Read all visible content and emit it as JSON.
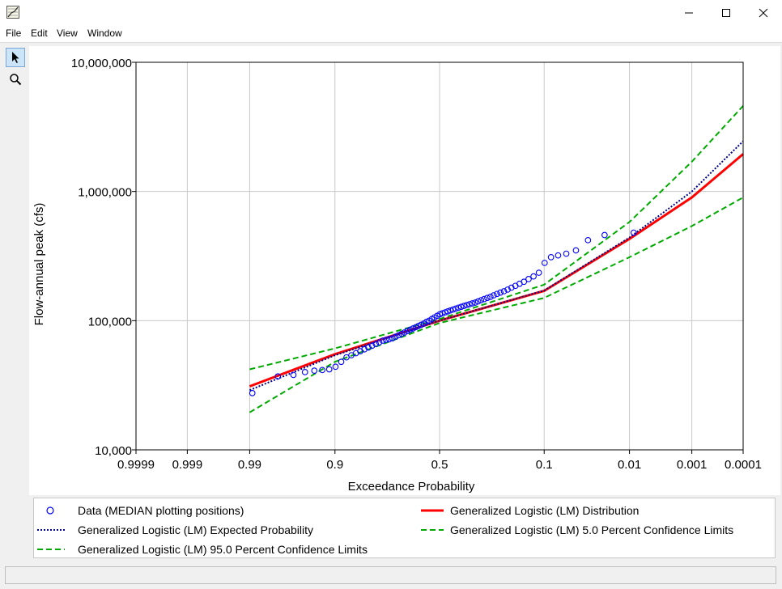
{
  "window": {
    "title": "",
    "icon": "chart-app-icon",
    "controls": [
      "minimize-icon",
      "maximize-icon",
      "close-icon"
    ]
  },
  "menu": {
    "items": [
      "File",
      "Edit",
      "View",
      "Window"
    ]
  },
  "toolbar": {
    "tools": [
      "pointer-arrow-icon",
      "magnifier-zoom-icon"
    ],
    "active": 0
  },
  "chart_data": {
    "type": "line",
    "xlabel": "Exceedance Probability",
    "ylabel": "Flow-annual peak (cfs)",
    "x_scale": "normal-probability, reversed",
    "y_scale": "log10",
    "xlim": [
      0.9999,
      0.0001
    ],
    "ylim": [
      10000,
      10000000
    ],
    "x_ticks": [
      0.9999,
      0.999,
      0.99,
      0.9,
      0.5,
      0.1,
      0.01,
      0.001,
      0.0001
    ],
    "x_tick_labels": [
      "0.9999",
      "0.999",
      "0.99",
      "0.9",
      "0.5",
      "0.1",
      "0.01",
      "0.001",
      "0.0001"
    ],
    "y_ticks": [
      10000,
      100000,
      1000000,
      10000000
    ],
    "y_tick_labels": [
      "10,000",
      "100,000",
      "1,000,000",
      "10,000,000"
    ],
    "grid": true,
    "legend_position": "bottom",
    "series": [
      {
        "name": "Data (MEDIAN plotting positions)",
        "kind": "scatter",
        "marker": "open-circle",
        "color": "#0000ff",
        "x": [
          0.9891,
          0.9762,
          0.9633,
          0.9504,
          0.9375,
          0.9246,
          0.9117,
          0.8988,
          0.8859,
          0.873,
          0.8601,
          0.8472,
          0.8343,
          0.8214,
          0.8085,
          0.7956,
          0.7827,
          0.7698,
          0.7569,
          0.744,
          0.7311,
          0.7182,
          0.7053,
          0.6924,
          0.6795,
          0.6666,
          0.6537,
          0.6408,
          0.6279,
          0.615,
          0.6021,
          0.5892,
          0.5763,
          0.5634,
          0.5505,
          0.5376,
          0.5247,
          0.5118,
          0.4989,
          0.486,
          0.4731,
          0.4602,
          0.4473,
          0.4344,
          0.4215,
          0.4086,
          0.3957,
          0.3828,
          0.3699,
          0.357,
          0.3441,
          0.3312,
          0.3183,
          0.3054,
          0.2925,
          0.2796,
          0.2667,
          0.2538,
          0.2409,
          0.228,
          0.2151,
          0.2022,
          0.1893,
          0.1764,
          0.1635,
          0.1506,
          0.1377,
          0.1248,
          0.1119,
          0.099,
          0.0861,
          0.0732,
          0.0603,
          0.0474,
          0.0345,
          0.0216,
          0.0087
        ],
        "y": [
          27500,
          37000,
          38000,
          40000,
          41000,
          41500,
          42000,
          44000,
          48000,
          52000,
          54000,
          56000,
          58000,
          60000,
          62000,
          64000,
          66000,
          68000,
          70000,
          71000,
          72000,
          73000,
          75000,
          77000,
          79000,
          81000,
          83000,
          85000,
          87000,
          89000,
          91000,
          93000,
          95000,
          98000,
          100000,
          103000,
          106000,
          109000,
          112000,
          114000,
          116000,
          118000,
          120000,
          122000,
          124000,
          126000,
          128000,
          130000,
          132000,
          134000,
          136000,
          138000,
          141000,
          144000,
          147000,
          150000,
          153000,
          157000,
          161000,
          165000,
          169000,
          174000,
          180000,
          186000,
          193000,
          200000,
          210000,
          220000,
          235000,
          280000,
          310000,
          320000,
          330000,
          350000,
          420000,
          460000,
          480000
        ]
      },
      {
        "name": "Generalized Logistic (LM) Distribution",
        "kind": "line",
        "style": "solid",
        "color": "#ff0000",
        "x": [
          0.99,
          0.9,
          0.5,
          0.1,
          0.01,
          0.001,
          0.0001
        ],
        "y": [
          31000,
          55000,
          100000,
          170000,
          430000,
          900000,
          1950000
        ]
      },
      {
        "name": "Generalized Logistic (LM) Expected Probability",
        "kind": "line",
        "style": "dotted",
        "color": "#00008b",
        "x": [
          0.99,
          0.9,
          0.5,
          0.1,
          0.01,
          0.001,
          0.0001
        ],
        "y": [
          29000,
          54000,
          100000,
          171000,
          440000,
          1000000,
          2450000
        ]
      },
      {
        "name": "Generalized Logistic (LM) 5.0 Percent Confidence Limits",
        "kind": "line",
        "style": "dashed",
        "color": "#00aa00",
        "x": [
          0.99,
          0.9,
          0.5,
          0.1,
          0.01,
          0.001,
          0.0001
        ],
        "y": [
          42000,
          61000,
          103000,
          190000,
          580000,
          1700000,
          4600000
        ]
      },
      {
        "name": "Generalized Logistic (LM) 95.0 Percent Confidence Limits",
        "kind": "line",
        "style": "dashed",
        "color": "#00aa00",
        "x": [
          0.99,
          0.9,
          0.5,
          0.1,
          0.01,
          0.001,
          0.0001
        ],
        "y": [
          19500,
          48000,
          96000,
          150000,
          310000,
          540000,
          900000
        ]
      }
    ]
  },
  "legend": {
    "entries": [
      {
        "label": "Data (MEDIAN plotting positions)",
        "symbol": "open-circle",
        "color": "#0000ff"
      },
      {
        "label": "Generalized Logistic (LM) Distribution",
        "symbol": "solid-line",
        "color": "#ff0000"
      },
      {
        "label": "Generalized Logistic (LM) Expected Probability",
        "symbol": "dotted-line",
        "color": "#00008b"
      },
      {
        "label": "Generalized Logistic (LM) 5.0 Percent Confidence Limits",
        "symbol": "dashed-line",
        "color": "#00aa00"
      },
      {
        "label": "Generalized Logistic (LM) 95.0 Percent Confidence Limits",
        "symbol": "dashed-line",
        "color": "#00aa00"
      }
    ]
  }
}
